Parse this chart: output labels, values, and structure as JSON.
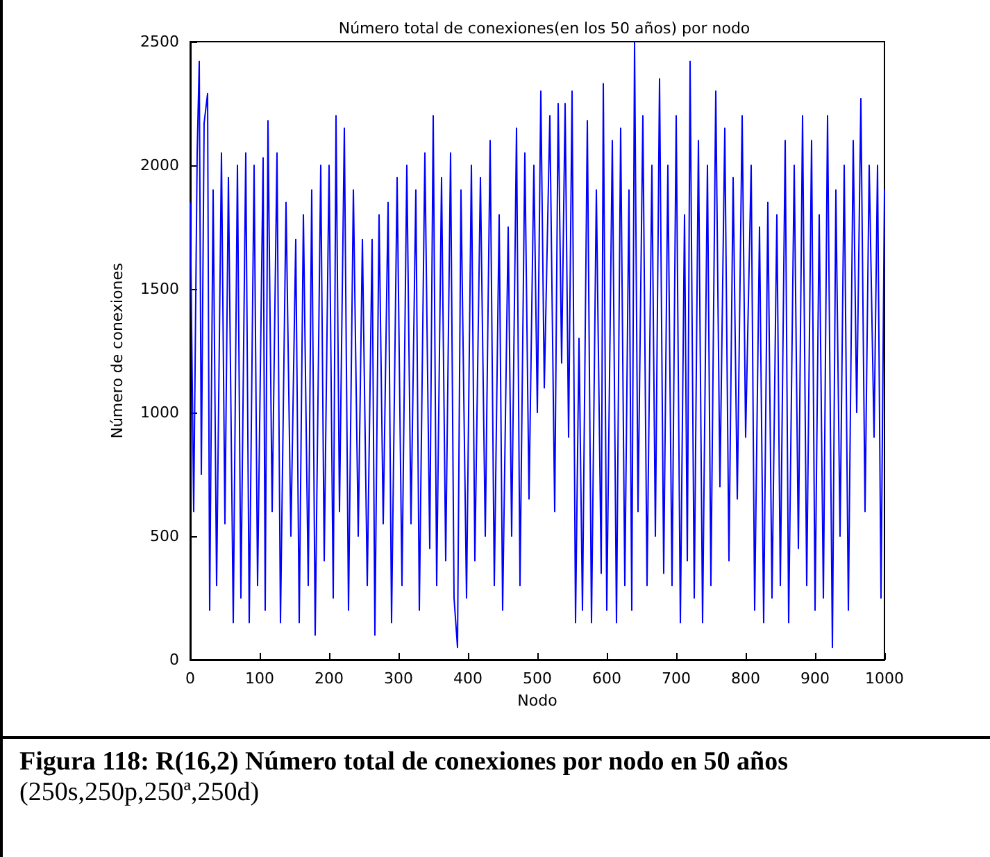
{
  "chart_data": {
    "type": "line",
    "title": "Número total de conexiones(en los 50 años) por nodo",
    "xlabel": "Nodo",
    "ylabel": "Número de conexiones",
    "annotations": [
      "Figura  118:  R(16,2)  Número total de conexiones por nodo en 50 años",
      "(250s,250p,250ª,250d)"
    ],
    "x": [
      0,
      5,
      10,
      13,
      16,
      20,
      25,
      28,
      33,
      38,
      45,
      50,
      55,
      62,
      68,
      73,
      80,
      85,
      92,
      97,
      105,
      108,
      112,
      118,
      125,
      130,
      138,
      145,
      152,
      157,
      163,
      170,
      175,
      180,
      188,
      193,
      200,
      206,
      210,
      215,
      222,
      228,
      235,
      242,
      248,
      255,
      262,
      266,
      272,
      278,
      285,
      290,
      298,
      305,
      312,
      318,
      325,
      330,
      338,
      345,
      350,
      355,
      362,
      368,
      375,
      380,
      385,
      390,
      398,
      405,
      410,
      418,
      425,
      432,
      438,
      445,
      450,
      458,
      463,
      470,
      475,
      482,
      488,
      495,
      500,
      505,
      510,
      518,
      525,
      530,
      535,
      540,
      545,
      550,
      555,
      560,
      565,
      572,
      578,
      585,
      592,
      595,
      600,
      608,
      614,
      620,
      626,
      632,
      636,
      640,
      645,
      652,
      658,
      665,
      670,
      676,
      682,
      688,
      694,
      700,
      706,
      712,
      716,
      720,
      726,
      732,
      738,
      745,
      750,
      757,
      763,
      770,
      776,
      782,
      788,
      795,
      800,
      808,
      813,
      820,
      826,
      832,
      838,
      845,
      850,
      857,
      862,
      870,
      876,
      882,
      888,
      895,
      900,
      906,
      912,
      918,
      925,
      930,
      936,
      942,
      948,
      955,
      960,
      966,
      972,
      978,
      985,
      990,
      995,
      1000
    ],
    "series": [
      {
        "color": "#0000ff",
        "values": [
          1850,
          600,
          2050,
          2420,
          750,
          2170,
          2290,
          200,
          1900,
          300,
          2050,
          550,
          1950,
          150,
          2000,
          250,
          2050,
          150,
          2000,
          300,
          2030,
          200,
          2180,
          600,
          2050,
          150,
          1850,
          500,
          1700,
          150,
          1800,
          300,
          1900,
          100,
          2000,
          400,
          2000,
          250,
          2200,
          600,
          2150,
          200,
          1900,
          500,
          1700,
          300,
          1700,
          100,
          1800,
          550,
          1850,
          150,
          1950,
          300,
          2000,
          550,
          1900,
          200,
          2050,
          450,
          2200,
          300,
          1950,
          400,
          2050,
          250,
          50,
          1900,
          250,
          2000,
          400,
          1950,
          500,
          2100,
          300,
          1800,
          200,
          1750,
          500,
          2150,
          300,
          2050,
          650,
          2000,
          1000,
          2300,
          1100,
          2200,
          600,
          2250,
          1200,
          2250,
          900,
          2300,
          150,
          1300,
          200,
          2180,
          150,
          1900,
          350,
          2330,
          200,
          2100,
          150,
          2150,
          300,
          1900,
          200,
          2500,
          600,
          2200,
          300,
          2000,
          500,
          2350,
          350,
          2000,
          300,
          2200,
          150,
          1800,
          400,
          2420,
          250,
          2100,
          150,
          2000,
          300,
          2300,
          700,
          2150,
          400,
          1950,
          650,
          2200,
          900,
          2000,
          200,
          1750,
          150,
          1850,
          250,
          1800,
          300,
          2100,
          150,
          2000,
          450,
          2200,
          300,
          2100,
          200,
          1800,
          250,
          2200,
          50,
          1900,
          500,
          2000,
          200,
          2100,
          1000,
          2270,
          600,
          2000,
          900,
          2000,
          250,
          1900
        ]
      }
    ],
    "xlim": [
      0,
      1000
    ],
    "xticks": [
      0,
      100,
      200,
      300,
      400,
      500,
      600,
      700,
      800,
      900,
      1000
    ],
    "ylim": [
      0,
      2500
    ],
    "yticks": [
      0,
      500,
      1000,
      1500,
      2000,
      2500
    ],
    "grid": false,
    "line_style": "solid"
  }
}
